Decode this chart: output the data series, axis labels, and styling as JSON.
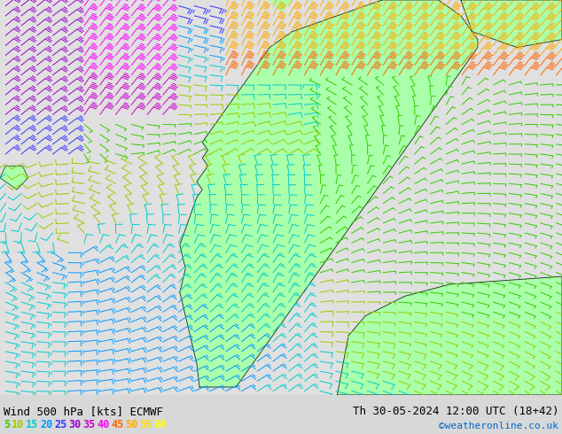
{
  "title_left": "Wind 500 hPa [kts] ECMWF",
  "title_right": "Th 30-05-2024 12:00 UTC (18+42)",
  "credit": "©weatheronline.co.uk",
  "legend_values": [
    5,
    10,
    15,
    20,
    25,
    30,
    35,
    40,
    45,
    50,
    55,
    60
  ],
  "legend_colors": [
    "#33cc00",
    "#99cc00",
    "#00cccc",
    "#0099ff",
    "#3333ff",
    "#9900cc",
    "#cc00cc",
    "#ff00ff",
    "#ff6600",
    "#ffaa00",
    "#ffdd00",
    "#ffff00"
  ],
  "bg_color": "#d8d8d8",
  "map_bg": "#e8e8e8",
  "land_color": "#aaffaa",
  "sea_color": "#e0e0e0",
  "border_color": "#222222",
  "coast_color": "#555555",
  "bottom_bar_color": "#ccffcc",
  "figsize": [
    6.34,
    4.9
  ],
  "dpi": 100
}
